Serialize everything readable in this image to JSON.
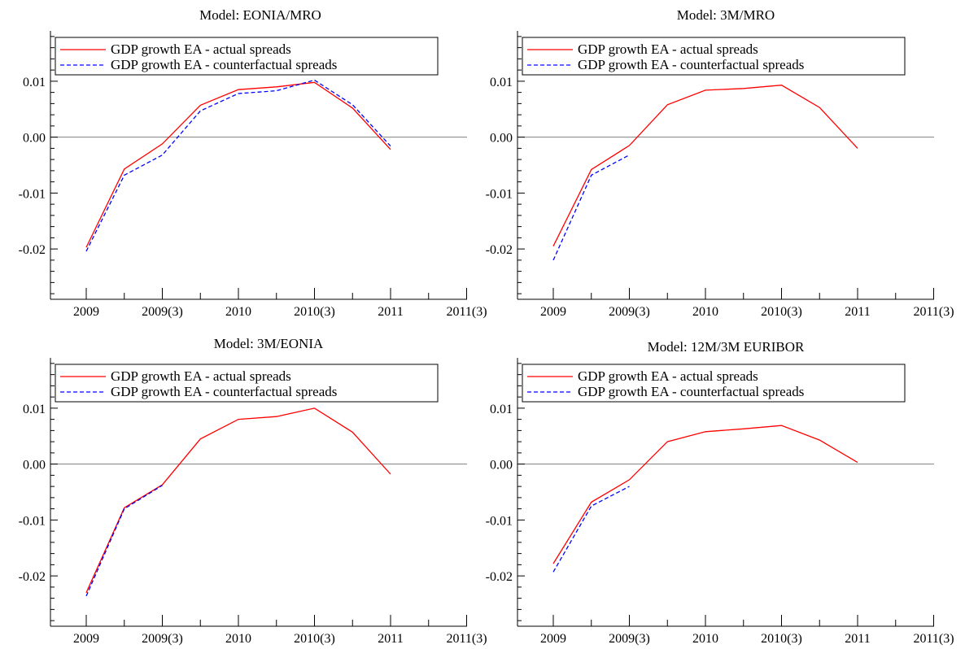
{
  "chart_data": [
    {
      "type": "line",
      "title": "Model: EONIA/MRO",
      "x_ticks": [
        "2009",
        "2009(3)",
        "2010",
        "2010(3)",
        "2011",
        "2011(3)"
      ],
      "ylim": [
        -0.029,
        0.019
      ],
      "y_ticks": [
        "0.01",
        "0.00",
        "-0.01",
        "-0.02"
      ],
      "y_tick_values": [
        0.01,
        0.0,
        -0.01,
        -0.02
      ],
      "legend_position": "top-left",
      "reference_line": 0,
      "series": [
        {
          "name": "GDP growth EA - actual spreads",
          "color": "#ff0000",
          "style": "solid",
          "x": [
            0,
            0.5,
            1,
            1.5,
            2,
            2.5,
            3,
            3.5,
            4
          ],
          "y": [
            -0.0197,
            -0.0057,
            -0.0012,
            0.0057,
            0.0085,
            0.009,
            0.0098,
            0.0052,
            -0.0022
          ]
        },
        {
          "name": "GDP growth EA - counterfactual spreads",
          "color": "#0000ff",
          "style": "dashed",
          "x": [
            0,
            0.5,
            1,
            1.5,
            2,
            2.5,
            3,
            3.5,
            4
          ],
          "y": [
            -0.0204,
            -0.0068,
            -0.0032,
            0.0047,
            0.0078,
            0.0083,
            0.0102,
            0.0058,
            -0.0016
          ]
        }
      ]
    },
    {
      "type": "line",
      "title": "Model: 3M/MRO",
      "x_ticks": [
        "2009",
        "2009(3)",
        "2010",
        "2010(3)",
        "2011",
        "2011(3)"
      ],
      "ylim": [
        -0.029,
        0.019
      ],
      "y_ticks": [
        "0.01",
        "0.00",
        "-0.01",
        "-0.02"
      ],
      "y_tick_values": [
        0.01,
        0.0,
        -0.01,
        -0.02
      ],
      "legend_position": "top-left",
      "reference_line": 0,
      "series": [
        {
          "name": "GDP growth EA - actual spreads",
          "color": "#ff0000",
          "style": "solid",
          "x": [
            0,
            0.5,
            1,
            1.5,
            2,
            2.5,
            3,
            3.5,
            4
          ],
          "y": [
            -0.0195,
            -0.0058,
            -0.0015,
            0.0058,
            0.0084,
            0.0087,
            0.0093,
            0.0053,
            -0.002
          ]
        },
        {
          "name": "GDP growth EA - counterfactual spreads",
          "color": "#0000ff",
          "style": "dashed",
          "x": [
            0,
            0.5,
            1
          ],
          "y": [
            -0.022,
            -0.0068,
            -0.0032
          ]
        }
      ]
    },
    {
      "type": "line",
      "title": "Model: 3M/EONIA",
      "x_ticks": [
        "2009",
        "2009(3)",
        "2010",
        "2010(3)",
        "2011",
        "2011(3)"
      ],
      "ylim": [
        -0.029,
        0.019
      ],
      "y_ticks": [
        "0.01",
        "0.00",
        "-0.01",
        "-0.02"
      ],
      "y_tick_values": [
        0.01,
        0.0,
        -0.01,
        -0.02
      ],
      "legend_position": "top-left",
      "reference_line": 0,
      "series": [
        {
          "name": "GDP growth EA - actual spreads",
          "color": "#ff0000",
          "style": "solid",
          "x": [
            0,
            0.5,
            1,
            1.5,
            2,
            2.5,
            3,
            3.5,
            4
          ],
          "y": [
            -0.023,
            -0.0078,
            -0.0037,
            0.0045,
            0.008,
            0.0085,
            0.01,
            0.0057,
            -0.0018
          ]
        },
        {
          "name": "GDP growth EA - counterfactual spreads",
          "color": "#0000ff",
          "style": "dashed",
          "x": [
            0,
            0.5,
            1
          ],
          "y": [
            -0.0236,
            -0.008,
            -0.0038
          ]
        }
      ]
    },
    {
      "type": "line",
      "title": "Model: 12M/3M EURIBOR",
      "x_ticks": [
        "2009",
        "2009(3)",
        "2010",
        "2010(3)",
        "2011",
        "2011(3)"
      ],
      "ylim": [
        -0.029,
        0.019
      ],
      "y_ticks": [
        "0.01",
        "0.00",
        "-0.01",
        "-0.02"
      ],
      "y_tick_values": [
        0.01,
        0.0,
        -0.01,
        -0.02
      ],
      "legend_position": "top-left",
      "reference_line": 0,
      "series": [
        {
          "name": "GDP growth EA - actual spreads",
          "color": "#ff0000",
          "style": "solid",
          "x": [
            0,
            0.5,
            1,
            1.5,
            2,
            2.5,
            3,
            3.5,
            4
          ],
          "y": [
            -0.0178,
            -0.0068,
            -0.0028,
            0.004,
            0.0058,
            0.0063,
            0.0069,
            0.0043,
            0.0003
          ]
        },
        {
          "name": "GDP growth EA - counterfactual spreads",
          "color": "#0000ff",
          "style": "dashed",
          "x": [
            0,
            0.5,
            1
          ],
          "y": [
            -0.0193,
            -0.0075,
            -0.004
          ]
        }
      ]
    }
  ]
}
